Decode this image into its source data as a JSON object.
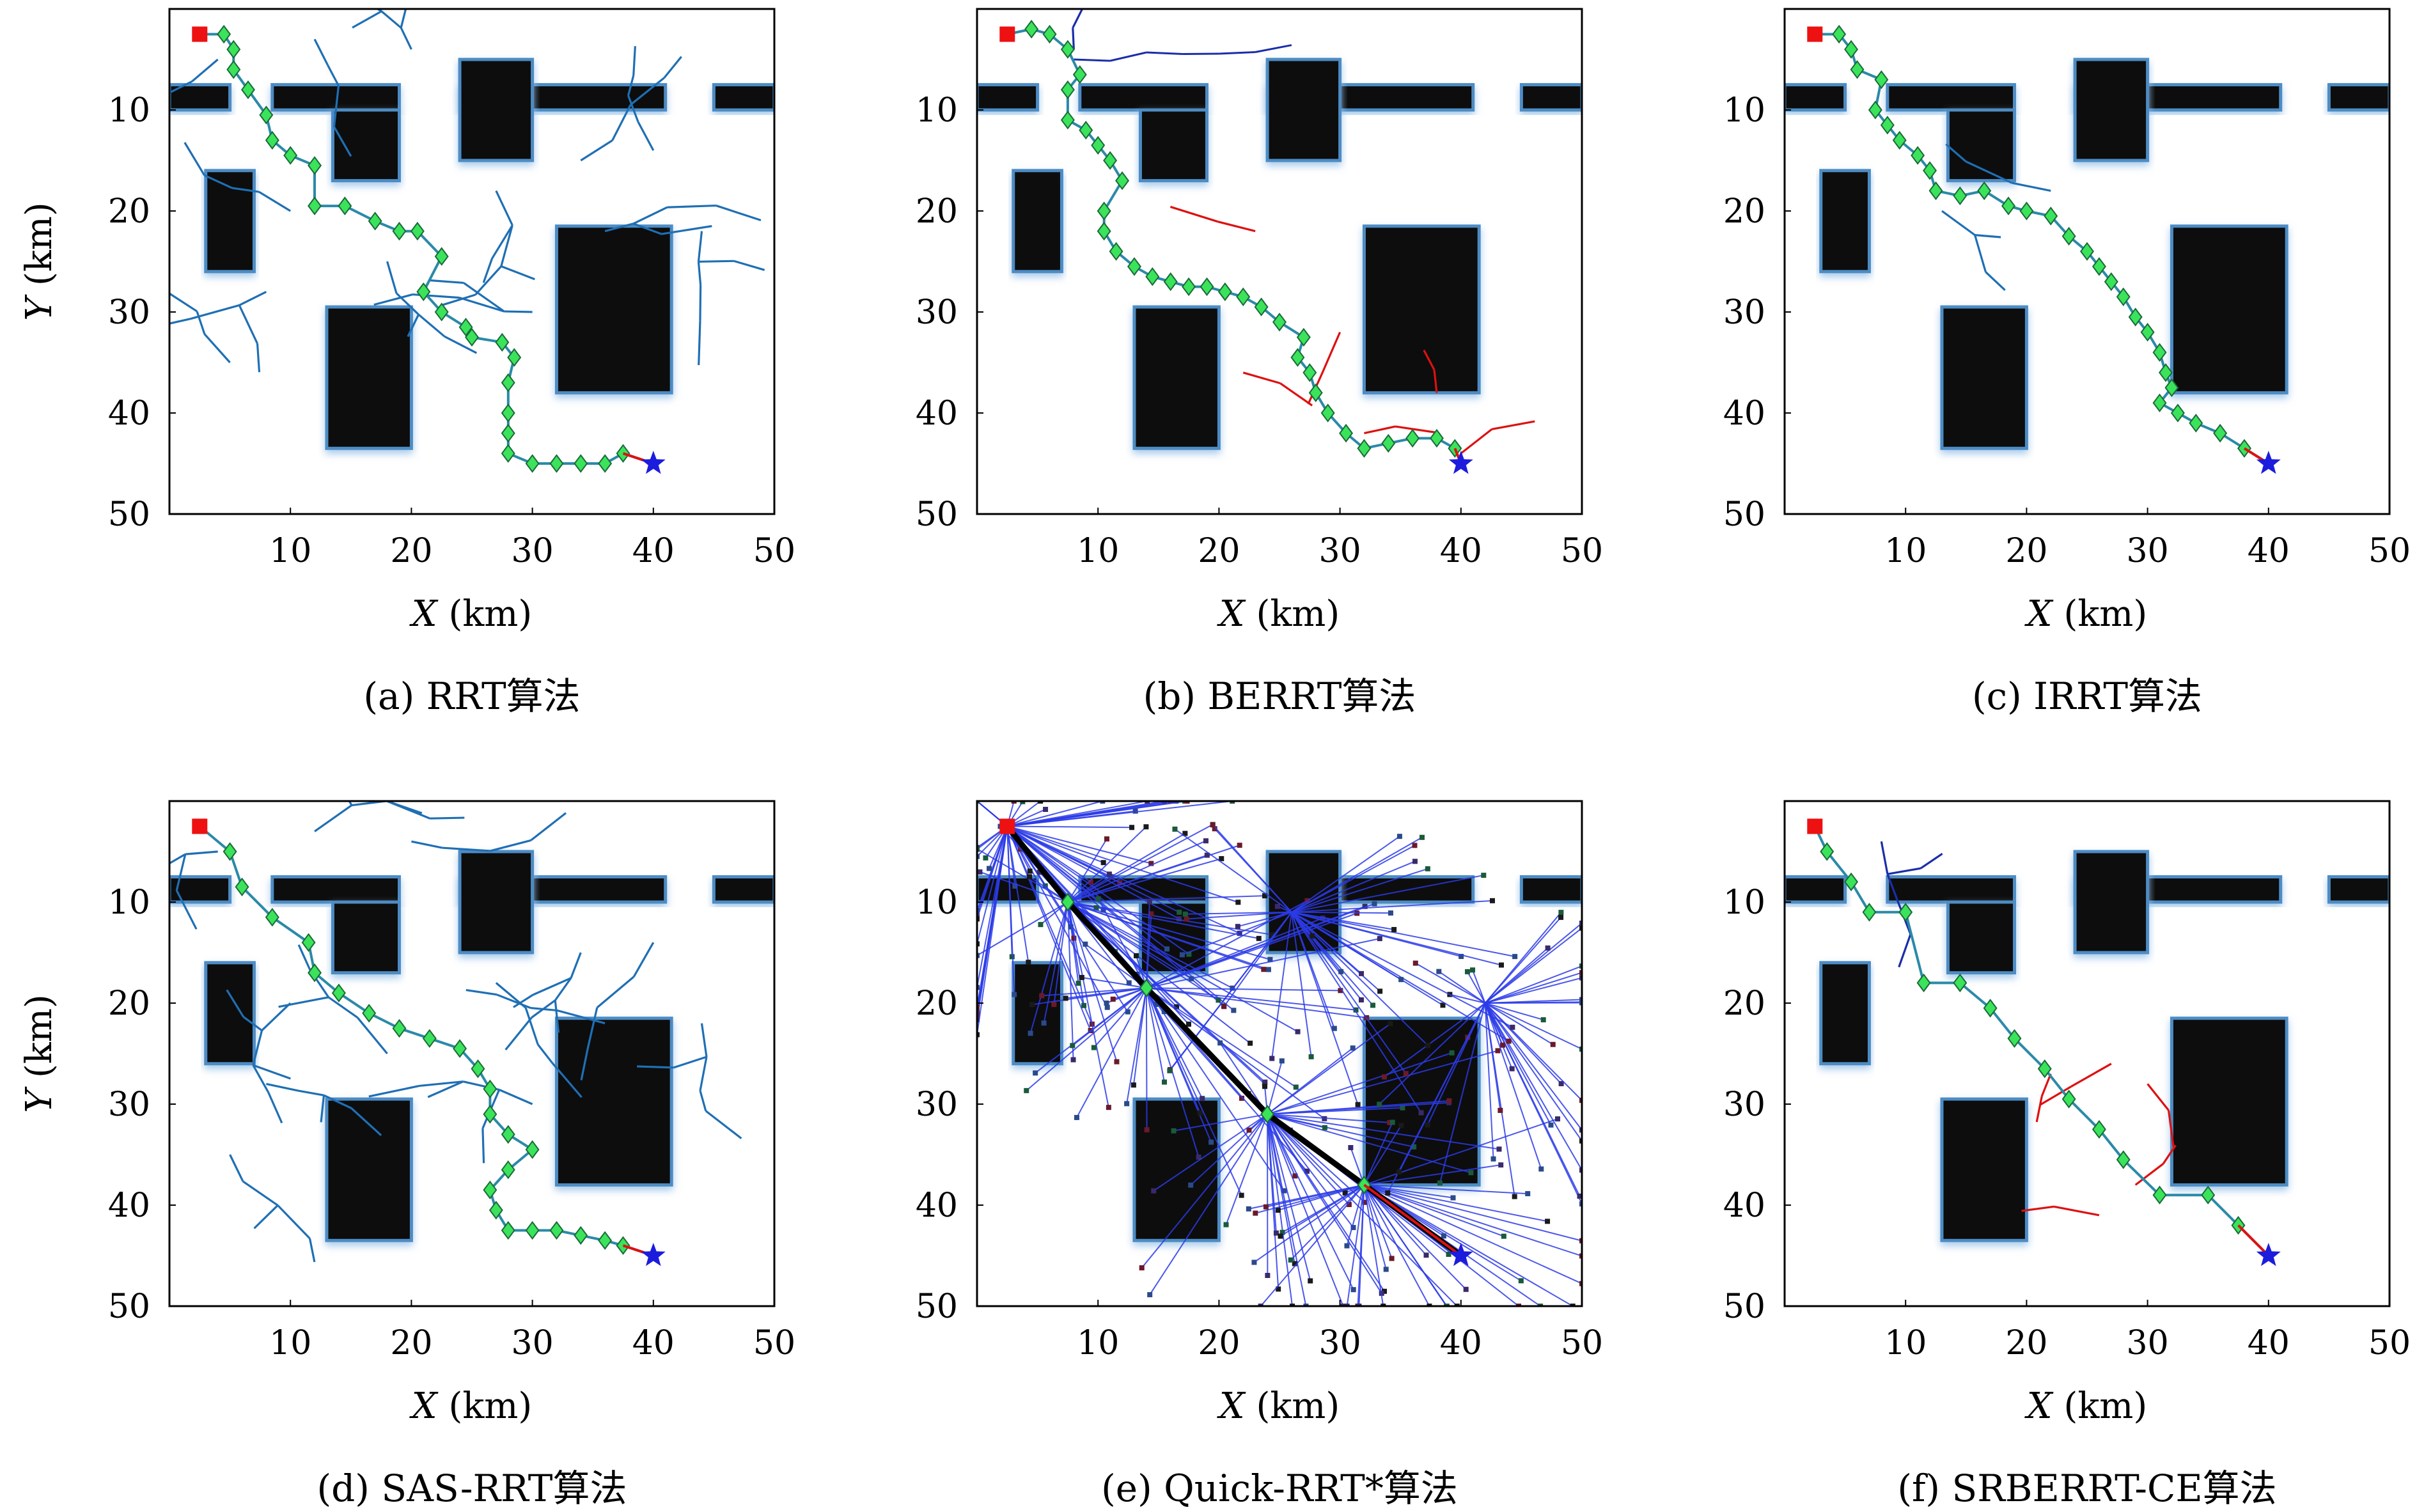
{
  "panels": [
    {
      "caption": "(a) RRT算法",
      "xlabel": "X (km)",
      "ylabel": "Y (km)",
      "xticks": [
        "10",
        "20",
        "30",
        "40",
        "50"
      ],
      "yticks": [
        "10",
        "20",
        "30",
        "40",
        "50"
      ]
    },
    {
      "caption": "(b) BERRT算法",
      "xlabel": "X (km)",
      "ylabel": "",
      "xticks": [
        "10",
        "20",
        "30",
        "40",
        "50"
      ],
      "yticks": [
        "10",
        "20",
        "30",
        "40",
        "50"
      ]
    },
    {
      "caption": "(c) IRRT算法",
      "xlabel": "X (km)",
      "ylabel": "",
      "xticks": [
        "10",
        "20",
        "30",
        "40",
        "50"
      ],
      "yticks": [
        "10",
        "20",
        "30",
        "40",
        "50"
      ]
    },
    {
      "caption": "(d) SAS-RRT算法",
      "xlabel": "X (km)",
      "ylabel": "Y (km)",
      "xticks": [
        "10",
        "20",
        "30",
        "40",
        "50"
      ],
      "yticks": [
        "10",
        "20",
        "30",
        "40",
        "50"
      ]
    },
    {
      "caption": "(e) Quick-RRT*算法",
      "xlabel": "X (km)",
      "ylabel": "",
      "xticks": [
        "10",
        "20",
        "30",
        "40",
        "50"
      ],
      "yticks": [
        "10",
        "20",
        "30",
        "40",
        "50"
      ]
    },
    {
      "caption": "(f) SRBERRT-CE算法",
      "xlabel": "X (km)",
      "ylabel": "",
      "xticks": [
        "10",
        "20",
        "30",
        "40",
        "50"
      ],
      "yticks": [
        "10",
        "20",
        "30",
        "40",
        "50"
      ]
    }
  ],
  "chart_data": [
    {
      "type": "scatter",
      "title": "(a) RRT算法",
      "xlabel": "X (km)",
      "ylabel": "Y (km)",
      "xlim": [
        0,
        50
      ],
      "ylim": [
        50,
        0
      ],
      "y_axis_inverted": true,
      "start": [
        2.5,
        2.5
      ],
      "goal": [
        40,
        45
      ],
      "path": [
        [
          2.5,
          2.5
        ],
        [
          4.5,
          2.5
        ],
        [
          5.3,
          4
        ],
        [
          5.3,
          6
        ],
        [
          6.5,
          8
        ],
        [
          8,
          10.5
        ],
        [
          8.5,
          13
        ],
        [
          10,
          14.5
        ],
        [
          12,
          15.5
        ],
        [
          12,
          19.5
        ],
        [
          14.5,
          19.5
        ],
        [
          17,
          21
        ],
        [
          19,
          22
        ],
        [
          20.5,
          22
        ],
        [
          22.5,
          24.5
        ],
        [
          21,
          28
        ],
        [
          22.5,
          30
        ],
        [
          24.5,
          31.5
        ],
        [
          25,
          32.5
        ],
        [
          27.5,
          33
        ],
        [
          28.5,
          34.5
        ],
        [
          28,
          37
        ],
        [
          28,
          40
        ],
        [
          28,
          42
        ],
        [
          28,
          44
        ],
        [
          30,
          45
        ],
        [
          32,
          45
        ],
        [
          34,
          45
        ],
        [
          36,
          45
        ],
        [
          37.5,
          44
        ],
        [
          40,
          45
        ]
      ],
      "tree_color": "#1f6fb4",
      "path_color": "#2a8aa8",
      "node_color": "#3be35a",
      "colors": {
        "start": "#ee1111",
        "goal": "#1c1cdd",
        "obstacle": "#0b0b0b",
        "obstacle_edge": "#4d8cc4"
      }
    },
    {
      "type": "scatter",
      "title": "(b) BERRT算法",
      "xlabel": "X (km)",
      "ylabel": "",
      "xlim": [
        0,
        50
      ],
      "ylim": [
        50,
        0
      ],
      "y_axis_inverted": true,
      "start": [
        2.5,
        2.5
      ],
      "goal": [
        40,
        45
      ],
      "path": [
        [
          2.5,
          2.5
        ],
        [
          4.5,
          2
        ],
        [
          6,
          2.5
        ],
        [
          7.5,
          4
        ],
        [
          8.5,
          6.5
        ],
        [
          7.5,
          8
        ],
        [
          7.5,
          11
        ],
        [
          9,
          12
        ],
        [
          10,
          13.5
        ],
        [
          11,
          15
        ],
        [
          12,
          17
        ],
        [
          10.5,
          20
        ],
        [
          10.5,
          22
        ],
        [
          11.5,
          24
        ],
        [
          13,
          25.5
        ],
        [
          14.5,
          26.5
        ],
        [
          16,
          27
        ],
        [
          17.5,
          27.5
        ],
        [
          19,
          27.5
        ],
        [
          20.5,
          28
        ],
        [
          22,
          28.5
        ],
        [
          23.5,
          29.5
        ],
        [
          25,
          31
        ],
        [
          27,
          32.5
        ],
        [
          26.5,
          34.5
        ],
        [
          27.5,
          36
        ],
        [
          28,
          38
        ],
        [
          29,
          40
        ],
        [
          30.5,
          42
        ],
        [
          32,
          43.5
        ],
        [
          34,
          43
        ],
        [
          36,
          42.5
        ],
        [
          38,
          42.5
        ],
        [
          39.5,
          43.5
        ],
        [
          40,
          45
        ]
      ],
      "tree_color": "#1b2ea8",
      "path_color": "#2a8aa8",
      "node_color": "#3be35a",
      "colors": {
        "start": "#ee1111",
        "goal": "#1c1cdd",
        "obstacle": "#0b0b0b",
        "obstacle_edge": "#4d8cc4",
        "goal_tree": "#dd1111"
      }
    },
    {
      "type": "scatter",
      "title": "(c) IRRT算法",
      "xlabel": "X (km)",
      "ylabel": "",
      "xlim": [
        0,
        50
      ],
      "ylim": [
        50,
        0
      ],
      "y_axis_inverted": true,
      "start": [
        2.5,
        2.5
      ],
      "goal": [
        40,
        45
      ],
      "path": [
        [
          2.5,
          2.5
        ],
        [
          4.5,
          2.5
        ],
        [
          5.5,
          4
        ],
        [
          6,
          6
        ],
        [
          8,
          7
        ],
        [
          7.5,
          10
        ],
        [
          8.5,
          11.5
        ],
        [
          9.5,
          13
        ],
        [
          11,
          14.5
        ],
        [
          12,
          16
        ],
        [
          12.5,
          18
        ],
        [
          14.5,
          18.5
        ],
        [
          16.5,
          18
        ],
        [
          18.5,
          19.5
        ],
        [
          20,
          20
        ],
        [
          22,
          20.5
        ],
        [
          23.5,
          22.5
        ],
        [
          25,
          24
        ],
        [
          26,
          25.5
        ],
        [
          27,
          27
        ],
        [
          28,
          28.5
        ],
        [
          29,
          30.5
        ],
        [
          30,
          32
        ],
        [
          31,
          34
        ],
        [
          31.5,
          36
        ],
        [
          32,
          37.5
        ],
        [
          31,
          39
        ],
        [
          32.5,
          40
        ],
        [
          34,
          41
        ],
        [
          36,
          42
        ],
        [
          38,
          43.5
        ],
        [
          40,
          45
        ]
      ],
      "tree_color": "#1f6fb4",
      "path_color": "#2a8aa8",
      "node_color": "#3be35a",
      "colors": {
        "start": "#ee1111",
        "goal": "#1c1cdd",
        "obstacle": "#0b0b0b",
        "obstacle_edge": "#4d8cc4"
      }
    },
    {
      "type": "scatter",
      "title": "(d) SAS-RRT算法",
      "xlabel": "X (km)",
      "ylabel": "Y (km)",
      "xlim": [
        0,
        50
      ],
      "ylim": [
        50,
        0
      ],
      "y_axis_inverted": true,
      "start": [
        2.5,
        2.5
      ],
      "goal": [
        40,
        45
      ],
      "path": [
        [
          2.5,
          2.5
        ],
        [
          5,
          5
        ],
        [
          6,
          8.5
        ],
        [
          8.5,
          11.5
        ],
        [
          11.5,
          14
        ],
        [
          12,
          17
        ],
        [
          14,
          19
        ],
        [
          16.5,
          21
        ],
        [
          19,
          22.5
        ],
        [
          21.5,
          23.5
        ],
        [
          24,
          24.5
        ],
        [
          25.5,
          26.5
        ],
        [
          26.5,
          28.5
        ],
        [
          26.5,
          31
        ],
        [
          28,
          33
        ],
        [
          30,
          34.5
        ],
        [
          28,
          36.5
        ],
        [
          26.5,
          38.5
        ],
        [
          27,
          40.5
        ],
        [
          28,
          42.5
        ],
        [
          30,
          42.5
        ],
        [
          32,
          42.5
        ],
        [
          34,
          43
        ],
        [
          36,
          43.5
        ],
        [
          37.5,
          44
        ],
        [
          40,
          45
        ]
      ],
      "tree_color": "#1f6fb4",
      "path_color": "#2a8aa8",
      "node_color": "#3be35a",
      "colors": {
        "start": "#ee1111",
        "goal": "#1c1cdd",
        "obstacle": "#0b0b0b",
        "obstacle_edge": "#4d8cc4"
      }
    },
    {
      "type": "scatter",
      "title": "(e) Quick-RRT*算法",
      "xlabel": "X (km)",
      "ylabel": "",
      "xlim": [
        0,
        50
      ],
      "ylim": [
        50,
        0
      ],
      "y_axis_inverted": true,
      "start": [
        2.5,
        2.5
      ],
      "goal": [
        40,
        45
      ],
      "path": [
        [
          2.5,
          2.5
        ],
        [
          7.5,
          10
        ],
        [
          14,
          18.5
        ],
        [
          24,
          31
        ],
        [
          32,
          38
        ],
        [
          40,
          45
        ]
      ],
      "tree_color": "#2b3be8",
      "path_color": "#000000",
      "node_color": "#3be35a",
      "colors": {
        "start": "#ee1111",
        "goal": "#1c1cdd",
        "obstacle": "#0b0b0b",
        "obstacle_edge": "#4d8cc4"
      }
    },
    {
      "type": "scatter",
      "title": "(f) SRBERRT-CE算法",
      "xlabel": "X (km)",
      "ylabel": "",
      "xlim": [
        0,
        50
      ],
      "ylim": [
        50,
        0
      ],
      "y_axis_inverted": true,
      "start": [
        2.5,
        2.5
      ],
      "goal": [
        40,
        45
      ],
      "path": [
        [
          2.5,
          2.5
        ],
        [
          3.5,
          5
        ],
        [
          5.5,
          8
        ],
        [
          7,
          11
        ],
        [
          10,
          11
        ],
        [
          11.5,
          18
        ],
        [
          14.5,
          18
        ],
        [
          17,
          20.5
        ],
        [
          19,
          23.5
        ],
        [
          21.5,
          26.5
        ],
        [
          23.5,
          29.5
        ],
        [
          26,
          32.5
        ],
        [
          28,
          35.5
        ],
        [
          31,
          39
        ],
        [
          35,
          39
        ],
        [
          37.5,
          42
        ],
        [
          40,
          45
        ]
      ],
      "tree_color": "#1b2ea8",
      "path_color": "#2a8aa8",
      "node_color": "#3be35a",
      "colors": {
        "start": "#ee1111",
        "goal": "#1c1cdd",
        "obstacle": "#0b0b0b",
        "obstacle_edge": "#4d8cc4",
        "goal_tree": "#dd1111"
      }
    }
  ],
  "obstacles": [
    [
      0,
      7.5,
      5,
      10
    ],
    [
      8.5,
      7.5,
      19,
      10
    ],
    [
      13.5,
      10,
      19,
      17
    ],
    [
      24,
      7.5,
      41,
      10
    ],
    [
      24,
      5,
      30,
      15
    ],
    [
      45,
      7.5,
      50,
      10
    ],
    [
      3,
      16,
      7,
      26
    ],
    [
      32,
      21.5,
      41.5,
      38
    ],
    [
      13,
      29.5,
      20,
      43.5
    ]
  ]
}
